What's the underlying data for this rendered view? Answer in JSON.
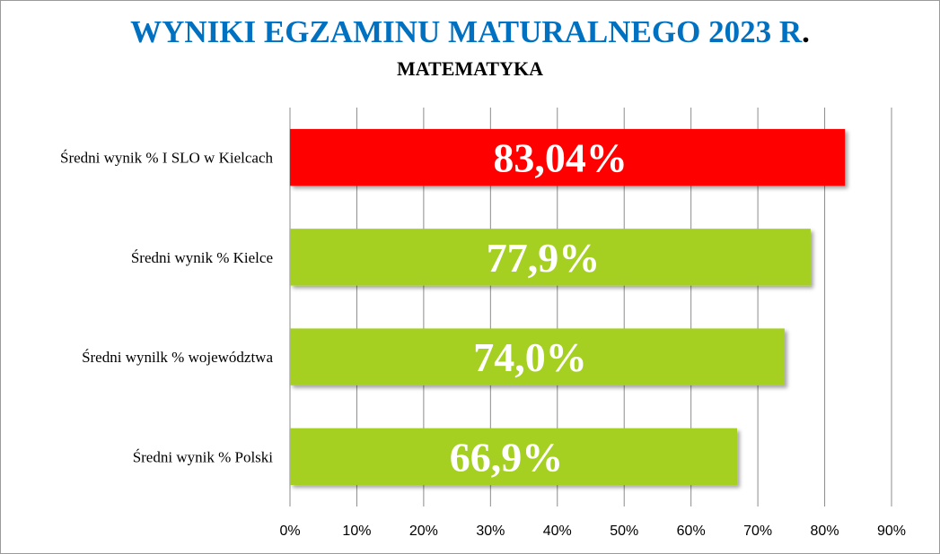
{
  "title_main": "WYNIKI EGZAMINU MATURALNEGO 2023 R",
  "title_dot": ".",
  "subtitle": "MATEMATYKA",
  "chart_data": {
    "type": "bar",
    "orientation": "horizontal",
    "title": "WYNIKI EGZAMINU MATURALNEGO 2023 R.",
    "subtitle": "MATEMATYKA",
    "categories": [
      "Średni wynik % I SLO w Kielcach",
      "Średni wynik % Kielce",
      "Średni wynilk % województwa",
      "Średni wynik % Polski"
    ],
    "values": [
      83.04,
      77.9,
      74.0,
      66.9
    ],
    "data_labels": [
      "83,04%",
      "77,9%",
      "74,0%",
      "66,9%"
    ],
    "bar_colors": [
      "#ff0000",
      "#a5d022",
      "#a5d022",
      "#a5d022"
    ],
    "xlim": [
      0,
      90
    ],
    "x_ticks": [
      0,
      10,
      20,
      30,
      40,
      50,
      60,
      70,
      80,
      90
    ],
    "x_tick_labels": [
      "0%",
      "10%",
      "20%",
      "30%",
      "40%",
      "50%",
      "60%",
      "70%",
      "80%",
      "90%"
    ],
    "grid": "vertical",
    "legend": "none"
  }
}
